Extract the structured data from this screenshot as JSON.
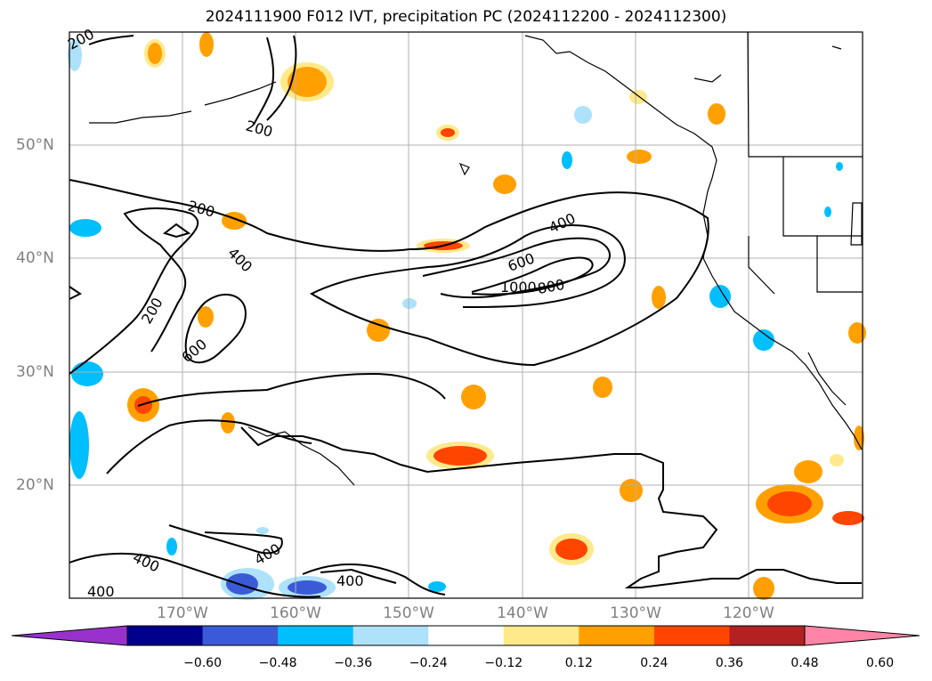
{
  "title": "2024111900 F012 IVT, precipitation PC (2024112200 - 2024112300)",
  "map": {
    "lat_labels": [
      "50°N",
      "40°N",
      "30°N",
      "20°N"
    ],
    "lon_labels": [
      "170°W",
      "160°W",
      "150°W",
      "140°W",
      "130°W",
      "120°W"
    ],
    "contour_labels": [
      "200",
      "200",
      "200",
      "400",
      "200",
      "600",
      "400",
      "600",
      "1000",
      "800",
      "400",
      "400",
      "400",
      "400"
    ],
    "contour_color": "#000000",
    "gridlines": true,
    "coastlines": true,
    "state_borders": true
  },
  "colorbar": {
    "ticks": [
      "−0.60",
      "−0.48",
      "−0.36",
      "−0.24",
      "−0.12",
      "0.12",
      "0.24",
      "0.36",
      "0.48",
      "0.60"
    ],
    "colors": [
      "#9932CC",
      "#00008B",
      "#3B5BD6",
      "#00BFFF",
      "#ADE2FA",
      "#FFFFFF",
      "#FFE98A",
      "#FFA000",
      "#FF4500",
      "#B22222",
      "#FF85A8"
    ]
  }
}
